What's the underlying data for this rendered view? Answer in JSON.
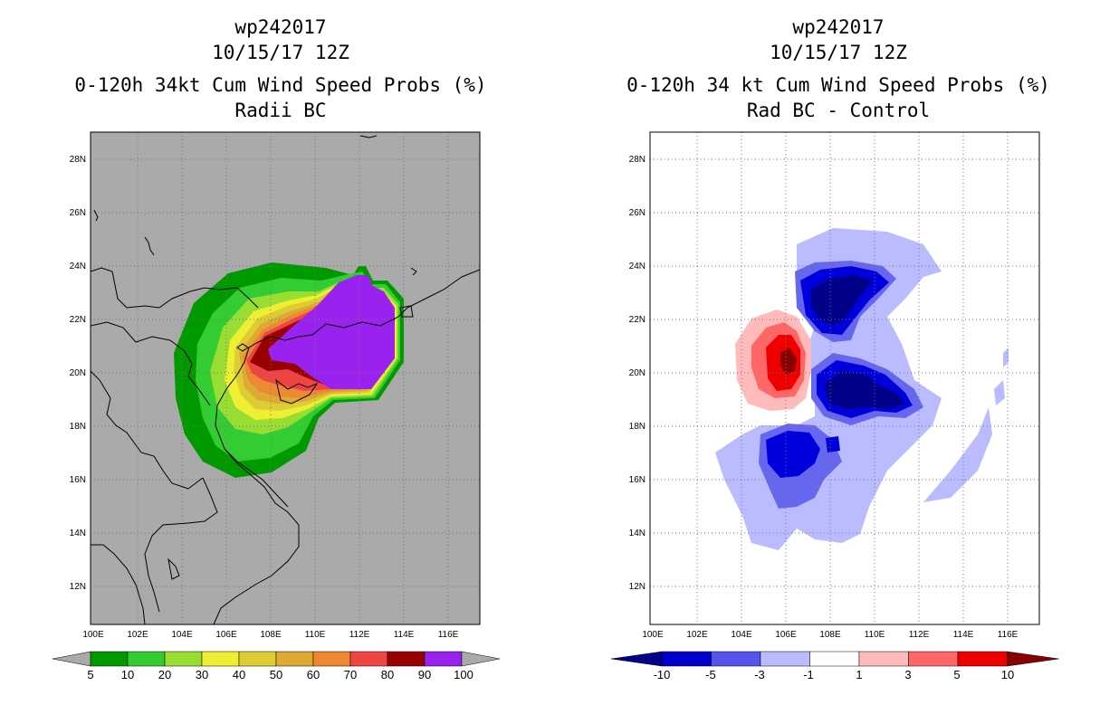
{
  "left": {
    "title_lines": [
      "wp242017",
      "10/15/17 12Z",
      "0-120h 34kt Cum Wind Speed Probs (%)",
      "Radii BC"
    ],
    "lat_labels": [
      "28N",
      "26N",
      "24N",
      "22N",
      "20N",
      "18N",
      "16N",
      "14N",
      "12N"
    ],
    "lon_labels": [
      "100E",
      "102E",
      "104E",
      "106E",
      "108E",
      "110E",
      "112E",
      "114E",
      "116E"
    ],
    "colorbar": {
      "labels": [
        "5",
        "10",
        "20",
        "30",
        "40",
        "50",
        "60",
        "70",
        "80",
        "90",
        "100"
      ],
      "colors": [
        "#009900",
        "#33cc33",
        "#99dd33",
        "#eeee33",
        "#ddcc33",
        "#ddaa33",
        "#ee8833",
        "#ee4444",
        "#990000",
        "#9922ee"
      ],
      "end_color": "#aaaaaa"
    },
    "background_color": "#aaaaaa"
  },
  "right": {
    "title_lines": [
      "wp242017",
      "10/15/17 12Z",
      "0-120h 34 kt Cum Wind Speed Probs (%)",
      "Rad BC - Control"
    ],
    "lat_labels": [
      "28N",
      "26N",
      "24N",
      "22N",
      "20N",
      "18N",
      "16N",
      "14N",
      "12N"
    ],
    "lon_labels": [
      "100E",
      "102E",
      "104E",
      "106E",
      "108E",
      "110E",
      "112E",
      "114E",
      "116E"
    ],
    "colorbar": {
      "labels": [
        "-10",
        "-5",
        "-3",
        "-1",
        "1",
        "3",
        "5",
        "10"
      ],
      "colors": [
        "#0000cc",
        "#5555ee",
        "#bbbbff",
        "#ffffff",
        "#ffbbbb",
        "#ff6666",
        "#ee0000"
      ],
      "low_end_color": "#000088",
      "high_end_color": "#880000"
    },
    "background_color": "#ffffff"
  }
}
